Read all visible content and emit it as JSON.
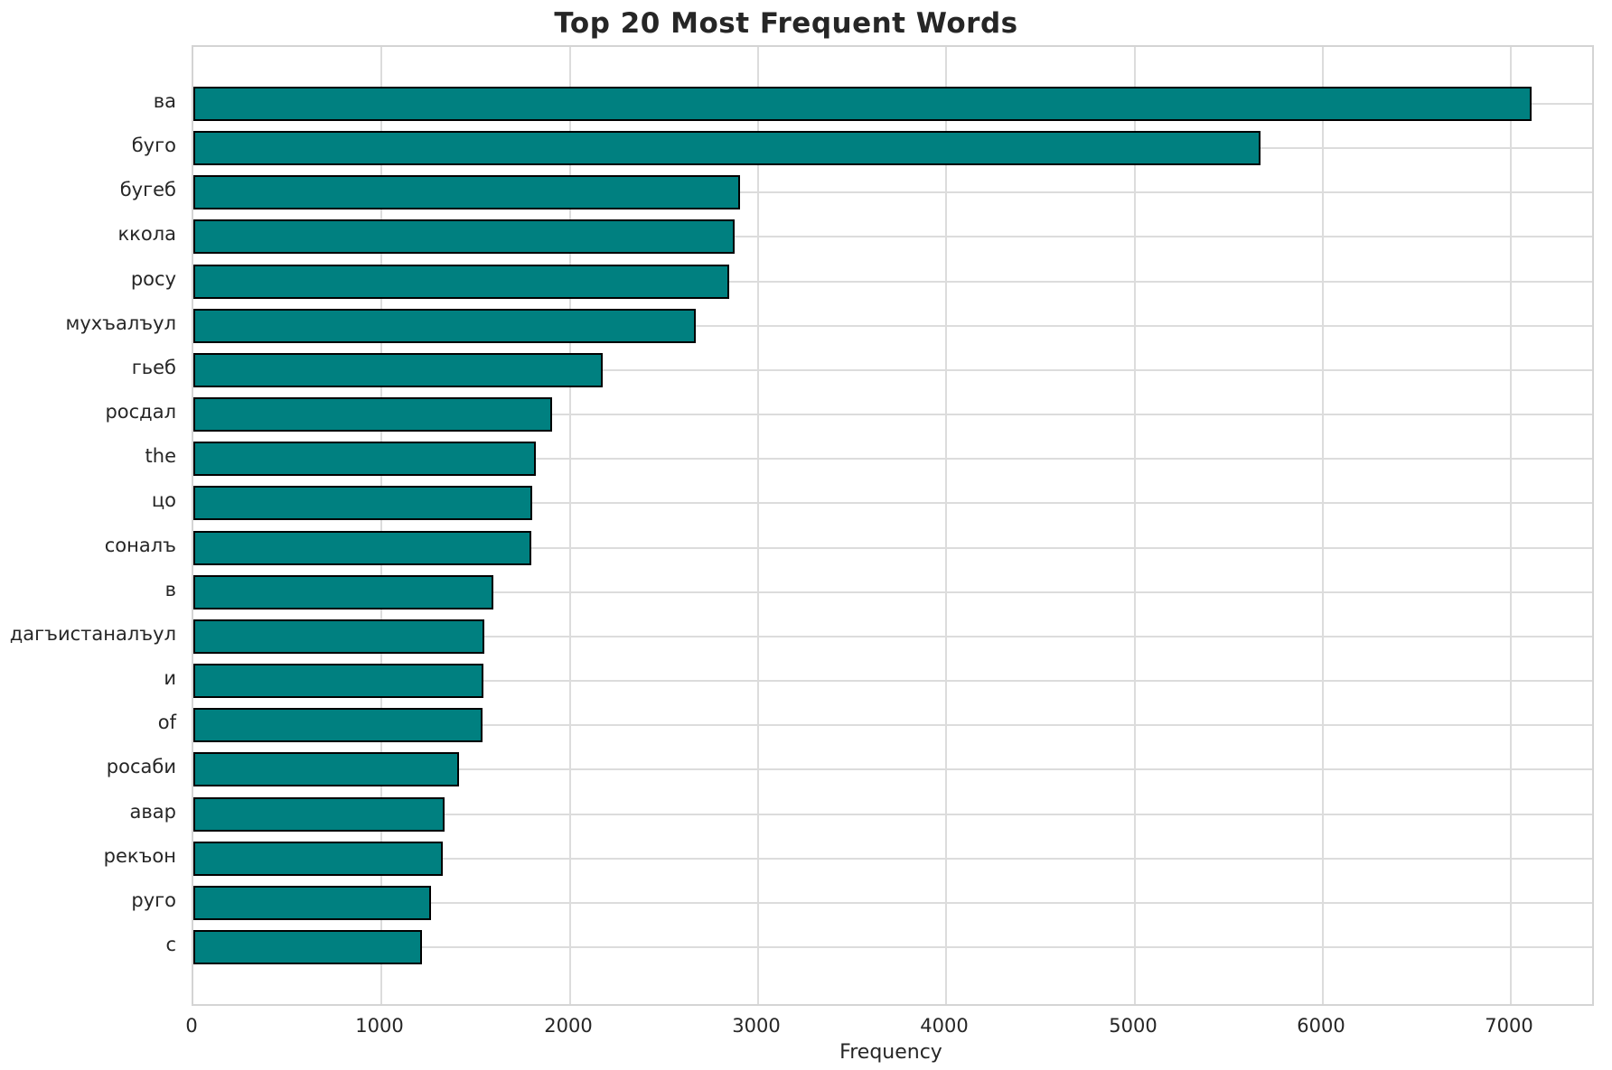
{
  "title": "Top 20 Most Frequent Words",
  "chart_data": {
    "type": "bar",
    "orientation": "horizontal",
    "title": "Top 20 Most Frequent Words",
    "xlabel": "Frequency",
    "ylabel": "",
    "categories": [
      "ва",
      "буго",
      "бугеб",
      "ккола",
      "росу",
      "мухъалъул",
      "гьеб",
      "росдал",
      "the",
      "цо",
      "соналъ",
      "в",
      "дагъистаналъул",
      "и",
      "of",
      "росаби",
      "авар",
      "рекъон",
      "руго",
      "с"
    ],
    "values": [
      7110,
      5670,
      2905,
      2875,
      2845,
      2670,
      2175,
      1905,
      1820,
      1800,
      1795,
      1595,
      1545,
      1540,
      1535,
      1410,
      1335,
      1325,
      1260,
      1215
    ],
    "xlim": [
      0,
      7430
    ],
    "xticks": [
      0,
      1000,
      2000,
      3000,
      4000,
      5000,
      6000,
      7000
    ],
    "grid": true,
    "legend": false,
    "bar_color": "#008080",
    "bar_edge_color": "#000000",
    "grid_color": "#dcdcdc",
    "text_color": "#262626",
    "background_color": "#ffffff"
  }
}
